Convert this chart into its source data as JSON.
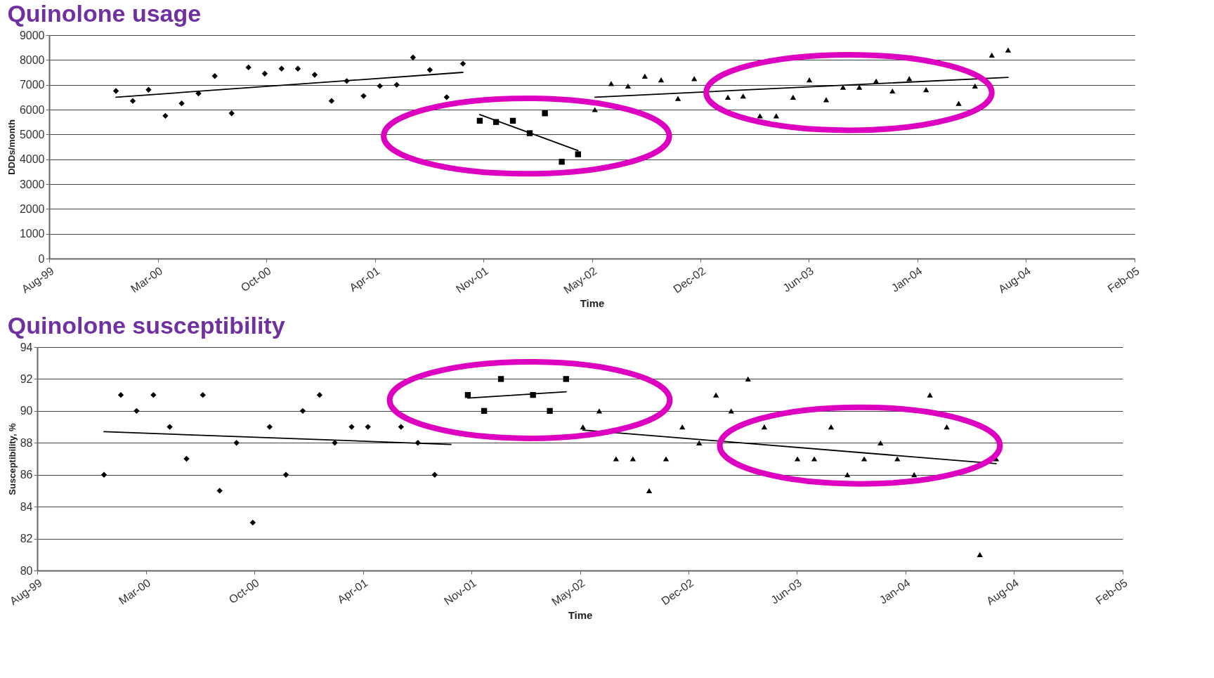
{
  "chart_data": [
    {
      "type": "scatter",
      "title": "Quinolone usage",
      "xlabel": "Time",
      "ylabel": "DDDs/month",
      "grid": "y",
      "xlim": [
        "1999-08-31",
        "2005-02-19"
      ],
      "xticks": [
        {
          "value": "1999-08-31",
          "label": "Aug-99"
        },
        {
          "value": "2000-03-18",
          "label": "Mar-00"
        },
        {
          "value": "2000-10-04",
          "label": "Oct-00"
        },
        {
          "value": "2001-04-22",
          "label": "Apr-01"
        },
        {
          "value": "2001-11-08",
          "label": "Nov-01"
        },
        {
          "value": "2002-05-27",
          "label": "May-02"
        },
        {
          "value": "2002-12-13",
          "label": "Dec-02"
        },
        {
          "value": "2003-06-30",
          "label": "Jun-03"
        },
        {
          "value": "2004-01-16",
          "label": "Jan-04"
        },
        {
          "value": "2004-08-03",
          "label": "Aug-04"
        },
        {
          "value": "2005-02-19",
          "label": "Feb-05"
        }
      ],
      "ylim": [
        0,
        9000
      ],
      "yticks": [
        0,
        1000,
        2000,
        3000,
        4000,
        5000,
        6000,
        7000,
        8000,
        9000
      ],
      "series": [
        {
          "marker": "diamond",
          "color": "#000000",
          "x": [
            "2000-01",
            "2000-02",
            "2000-03",
            "2000-04",
            "2000-05",
            "2000-06",
            "2000-07",
            "2000-08",
            "2000-09",
            "2000-10",
            "2000-11",
            "2000-12",
            "2001-01",
            "2001-02",
            "2001-03",
            "2001-04",
            "2001-05",
            "2001-06",
            "2001-07",
            "2001-08",
            "2001-09",
            "2001-10"
          ],
          "values": [
            6750,
            6350,
            6800,
            5750,
            6250,
            6650,
            7350,
            5850,
            7700,
            7450,
            7650,
            7650,
            7400,
            6350,
            7150,
            6550,
            6950,
            7000,
            8100,
            7600,
            6500,
            7850
          ]
        },
        {
          "type": "line",
          "color": "#000000",
          "x": [
            "2000-01",
            "2001-10"
          ],
          "values": [
            6500,
            7500
          ]
        },
        {
          "marker": "square",
          "color": "#000000",
          "x": [
            "2001-11",
            "2001-12",
            "2002-01",
            "2002-02",
            "2002-03",
            "2002-04",
            "2002-05"
          ],
          "values": [
            5550,
            5500,
            5550,
            5050,
            5850,
            3900,
            4200
          ]
        },
        {
          "type": "line",
          "color": "#000000",
          "x": [
            "2001-11",
            "2002-05"
          ],
          "values": [
            5800,
            4350
          ]
        },
        {
          "marker": "triangle",
          "color": "#000000",
          "x": [
            "2002-06",
            "2002-07",
            "2002-08",
            "2002-09",
            "2002-10",
            "2002-11",
            "2002-12",
            "2003-02",
            "2003-03",
            "2003-04",
            "2003-05",
            "2003-06",
            "2003-07",
            "2003-08",
            "2003-09",
            "2003-10",
            "2003-11",
            "2003-12",
            "2004-01",
            "2004-02",
            "2004-04",
            "2004-05",
            "2004-06",
            "2004-07"
          ],
          "values": [
            6000,
            7050,
            6950,
            7350,
            7200,
            6450,
            7250,
            6500,
            6550,
            5750,
            5750,
            6500,
            7200,
            6400,
            6900,
            6900,
            7150,
            6750,
            7250,
            6800,
            6250,
            6950,
            8200,
            8400
          ]
        },
        {
          "type": "line",
          "color": "#000000",
          "x": [
            "2002-06",
            "2004-07"
          ],
          "values": [
            6500,
            7300
          ]
        }
      ]
    },
    {
      "type": "scatter",
      "title": "Quinolone susceptibility",
      "xlabel": "Time",
      "ylabel": "Susceptibility, %",
      "grid": "y",
      "xlim": [
        "1999-08-31",
        "2005-02-19"
      ],
      "xticks": [
        {
          "value": "1999-08-31",
          "label": "Aug-99"
        },
        {
          "value": "2000-03-18",
          "label": "Mar-00"
        },
        {
          "value": "2000-10-04",
          "label": "Oct-00"
        },
        {
          "value": "2001-04-22",
          "label": "Apr-01"
        },
        {
          "value": "2001-11-08",
          "label": "Nov-01"
        },
        {
          "value": "2002-05-27",
          "label": "May-02"
        },
        {
          "value": "2002-12-13",
          "label": "Dec-02"
        },
        {
          "value": "2003-06-30",
          "label": "Jun-03"
        },
        {
          "value": "2004-01-16",
          "label": "Jan-04"
        },
        {
          "value": "2004-08-03",
          "label": "Aug-04"
        },
        {
          "value": "2005-02-19",
          "label": "Feb-05"
        }
      ],
      "ylim": [
        80,
        94
      ],
      "yticks": [
        80,
        82,
        84,
        86,
        88,
        90,
        92,
        94
      ],
      "series": [
        {
          "marker": "diamond",
          "color": "#000000",
          "x": [
            "2000-01",
            "2000-02",
            "2000-03",
            "2000-04",
            "2000-05",
            "2000-06",
            "2000-07",
            "2000-08",
            "2000-09",
            "2000-10",
            "2000-11",
            "2000-12",
            "2001-01",
            "2001-02",
            "2001-03",
            "2001-04",
            "2001-05",
            "2001-07",
            "2001-08",
            "2001-09"
          ],
          "values": [
            86,
            91,
            90,
            91,
            89,
            87,
            91,
            85,
            88,
            83,
            89,
            86,
            90,
            91,
            88,
            89,
            89,
            89,
            88,
            86
          ]
        },
        {
          "type": "line",
          "color": "#000000",
          "x": [
            "2000-01",
            "2001-10"
          ],
          "values": [
            88.7,
            87.9
          ]
        },
        {
          "marker": "square",
          "color": "#000000",
          "x": [
            "2001-11",
            "2001-12",
            "2002-01",
            "2002-03",
            "2002-04",
            "2002-05"
          ],
          "values": [
            91,
            90,
            92,
            91,
            90,
            92
          ]
        },
        {
          "type": "line",
          "color": "#000000",
          "x": [
            "2001-11",
            "2002-05"
          ],
          "values": [
            90.8,
            91.2
          ]
        },
        {
          "marker": "triangle",
          "color": "#000000",
          "x": [
            "2002-06",
            "2002-07",
            "2002-08",
            "2002-09",
            "2002-10",
            "2002-11",
            "2002-12",
            "2003-01",
            "2003-02",
            "2003-03",
            "2003-04",
            "2003-05",
            "2003-07",
            "2003-08",
            "2003-09",
            "2003-10",
            "2003-11",
            "2003-12",
            "2004-01",
            "2004-02",
            "2004-03",
            "2004-04",
            "2004-06",
            "2004-07"
          ],
          "values": [
            89,
            90,
            87,
            87,
            85,
            87,
            89,
            88,
            91,
            90,
            92,
            89,
            87,
            87,
            89,
            86,
            87,
            88,
            87,
            86,
            91,
            89,
            81,
            87
          ]
        },
        {
          "type": "line",
          "color": "#000000",
          "x": [
            "2002-06",
            "2004-07"
          ],
          "values": [
            88.8,
            86.7
          ]
        }
      ]
    }
  ]
}
